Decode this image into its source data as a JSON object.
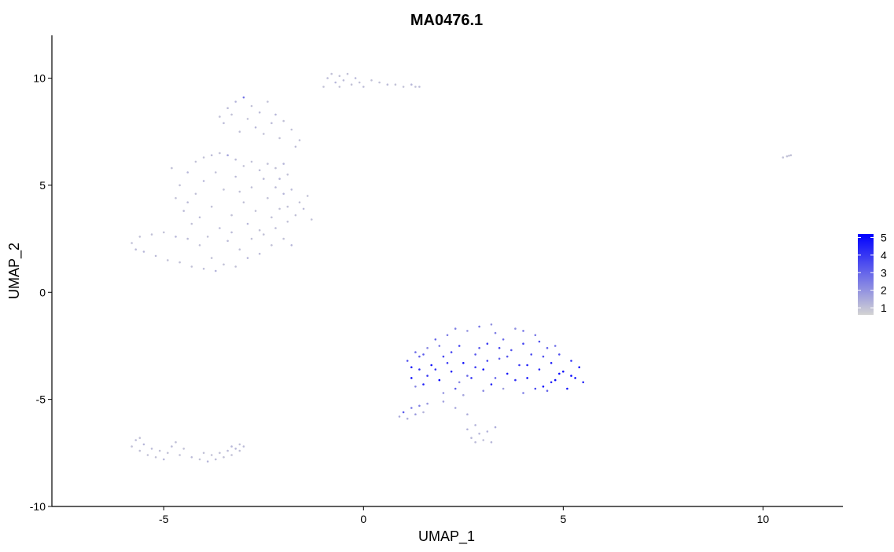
{
  "chart_data": {
    "type": "scatter",
    "title": "MA0476.1",
    "xlabel": "UMAP_1",
    "ylabel": "UMAP_2",
    "xlim": [
      -7.8,
      12
    ],
    "ylim": [
      -10,
      12
    ],
    "x_ticks": [
      -5,
      0,
      5,
      10
    ],
    "x_tick_labels": [
      "-5",
      "0",
      "5",
      "10"
    ],
    "y_ticks": [
      -10,
      -5,
      0,
      5,
      10
    ],
    "y_tick_labels": [
      "-10",
      "-5",
      "0",
      "5",
      "10"
    ],
    "grid": false,
    "legend": {
      "placement": "right",
      "type": "colorbar",
      "low_color": "#d3d3d3",
      "high_color": "#0000ff",
      "range": [
        0.6,
        5.2
      ],
      "ticks": [
        1,
        2,
        3,
        4,
        5
      ],
      "tick_labels": [
        "1",
        "2",
        "3",
        "4",
        "5"
      ]
    },
    "point_clusters": [
      {
        "name": "upper-left ring",
        "points": [
          [
            -5.8,
            2.3
          ],
          [
            -5.7,
            2.0
          ],
          [
            -5.6,
            2.6
          ],
          [
            -5.5,
            1.9
          ],
          [
            -5.3,
            2.7
          ],
          [
            -5.2,
            1.7
          ],
          [
            -5.0,
            2.8
          ],
          [
            -4.9,
            1.5
          ],
          [
            -4.7,
            2.6
          ],
          [
            -4.6,
            1.4
          ],
          [
            -4.4,
            2.5
          ],
          [
            -4.3,
            1.2
          ],
          [
            -4.1,
            2.2
          ],
          [
            -4.0,
            1.1
          ],
          [
            -3.8,
            1.6
          ],
          [
            -3.7,
            1.0
          ],
          [
            -3.5,
            1.3
          ],
          [
            -3.4,
            2.4
          ],
          [
            -3.2,
            1.2
          ],
          [
            -3.1,
            2.0
          ],
          [
            -2.9,
            1.6
          ],
          [
            -2.8,
            2.5
          ],
          [
            -2.6,
            1.8
          ],
          [
            -2.5,
            2.7
          ],
          [
            -2.3,
            2.2
          ],
          [
            -2.2,
            3.0
          ],
          [
            -2.0,
            2.5
          ],
          [
            -1.9,
            3.3
          ],
          [
            -1.8,
            2.2
          ],
          [
            -1.7,
            3.6
          ],
          [
            -1.6,
            4.2
          ],
          [
            -1.5,
            3.9
          ],
          [
            -1.4,
            4.5
          ],
          [
            -1.3,
            3.4
          ],
          [
            -1.8,
            4.8
          ],
          [
            -1.9,
            5.5
          ],
          [
            -2.0,
            6.0
          ],
          [
            -2.2,
            5.8
          ],
          [
            -2.4,
            6.0
          ],
          [
            -2.6,
            5.7
          ],
          [
            -2.8,
            6.1
          ],
          [
            -3.0,
            5.9
          ],
          [
            -3.2,
            6.2
          ],
          [
            -3.4,
            6.4
          ],
          [
            -3.6,
            6.5
          ],
          [
            -3.8,
            6.4
          ],
          [
            -4.0,
            6.3
          ],
          [
            -4.2,
            6.1
          ],
          [
            -4.4,
            5.6
          ],
          [
            -4.6,
            5.0
          ],
          [
            -4.7,
            4.4
          ],
          [
            -4.5,
            3.8
          ],
          [
            -4.3,
            3.2
          ],
          [
            -4.2,
            4.6
          ],
          [
            -4.0,
            5.2
          ],
          [
            -3.8,
            4.0
          ],
          [
            -3.6,
            3.0
          ],
          [
            -3.5,
            4.8
          ],
          [
            -3.3,
            3.6
          ],
          [
            -3.2,
            5.4
          ],
          [
            -3.0,
            4.2
          ],
          [
            -2.9,
            3.2
          ],
          [
            -2.8,
            4.9
          ],
          [
            -2.7,
            3.8
          ],
          [
            -2.5,
            5.3
          ],
          [
            -2.4,
            4.4
          ],
          [
            -2.3,
            3.5
          ],
          [
            -2.2,
            4.9
          ],
          [
            -2.1,
            3.9
          ],
          [
            -2.0,
            4.6
          ],
          [
            -4.8,
            5.8
          ],
          [
            -4.1,
            3.5
          ],
          [
            -3.9,
            2.6
          ],
          [
            -3.7,
            5.6
          ],
          [
            -3.3,
            2.8
          ],
          [
            -2.6,
            2.9
          ],
          [
            -1.9,
            4.0
          ],
          [
            -2.1,
            5.3
          ],
          [
            -3.1,
            4.7
          ],
          [
            -4.4,
            4.2
          ],
          [
            -3.6,
            8.2
          ],
          [
            -3.4,
            8.6
          ],
          [
            -3.2,
            8.9
          ],
          [
            -3.0,
            9.1
          ],
          [
            -2.8,
            8.7
          ],
          [
            -2.6,
            8.4
          ],
          [
            -2.4,
            8.9
          ],
          [
            -2.2,
            8.3
          ],
          [
            -2.0,
            8.0
          ],
          [
            -1.8,
            7.6
          ],
          [
            -3.5,
            7.9
          ],
          [
            -3.3,
            8.3
          ],
          [
            -2.9,
            8.1
          ],
          [
            -2.7,
            7.7
          ],
          [
            -2.5,
            7.4
          ],
          [
            -2.3,
            7.9
          ],
          [
            -2.1,
            7.2
          ],
          [
            -3.1,
            7.5
          ],
          [
            -1.7,
            6.8
          ],
          [
            -1.6,
            7.1
          ]
        ]
      },
      {
        "name": "top strip",
        "points": [
          [
            -1.0,
            9.6
          ],
          [
            -0.9,
            10.0
          ],
          [
            -0.8,
            10.2
          ],
          [
            -0.7,
            9.8
          ],
          [
            -0.6,
            10.1
          ],
          [
            -0.5,
            9.9
          ],
          [
            -0.4,
            10.2
          ],
          [
            -0.3,
            9.7
          ],
          [
            -0.2,
            10.0
          ],
          [
            -0.1,
            9.8
          ],
          [
            0.0,
            9.6
          ],
          [
            0.2,
            9.9
          ],
          [
            0.4,
            9.8
          ],
          [
            0.6,
            9.7
          ],
          [
            0.8,
            9.7
          ],
          [
            1.0,
            9.6
          ],
          [
            1.2,
            9.7
          ],
          [
            1.3,
            9.6
          ],
          [
            1.4,
            9.6
          ],
          [
            -0.6,
            9.6
          ]
        ]
      },
      {
        "name": "bottom-left strip",
        "points": [
          [
            -5.8,
            -7.2
          ],
          [
            -5.7,
            -6.9
          ],
          [
            -5.6,
            -7.4
          ],
          [
            -5.5,
            -7.1
          ],
          [
            -5.4,
            -7.6
          ],
          [
            -5.3,
            -7.3
          ],
          [
            -5.2,
            -7.7
          ],
          [
            -5.1,
            -7.4
          ],
          [
            -5.0,
            -7.8
          ],
          [
            -4.9,
            -7.5
          ],
          [
            -4.8,
            -7.2
          ],
          [
            -4.6,
            -7.6
          ],
          [
            -4.5,
            -7.3
          ],
          [
            -4.3,
            -7.7
          ],
          [
            -4.1,
            -7.8
          ],
          [
            -4.0,
            -7.5
          ],
          [
            -3.9,
            -7.9
          ],
          [
            -3.8,
            -7.6
          ],
          [
            -3.7,
            -7.8
          ],
          [
            -3.6,
            -7.5
          ],
          [
            -3.5,
            -7.7
          ],
          [
            -3.4,
            -7.4
          ],
          [
            -3.3,
            -7.6
          ],
          [
            -3.2,
            -7.3
          ],
          [
            -3.1,
            -7.4
          ],
          [
            -3.0,
            -7.2
          ],
          [
            -5.6,
            -6.8
          ],
          [
            -4.7,
            -7.0
          ],
          [
            -3.3,
            -7.2
          ],
          [
            -3.1,
            -7.1
          ]
        ]
      },
      {
        "name": "far-right outlier",
        "points": [
          [
            10.5,
            6.3
          ],
          [
            10.6,
            6.35
          ],
          [
            10.7,
            6.4
          ],
          [
            10.65,
            6.38
          ]
        ]
      },
      {
        "name": "main expressing cluster",
        "points": [
          [
            1.1,
            -3.2
          ],
          [
            1.2,
            -4.0
          ],
          [
            1.3,
            -2.8
          ],
          [
            1.4,
            -3.6
          ],
          [
            1.5,
            -4.3
          ],
          [
            1.6,
            -2.6
          ],
          [
            1.7,
            -3.4
          ],
          [
            1.8,
            -2.2
          ],
          [
            1.9,
            -4.1
          ],
          [
            2.0,
            -3.0
          ],
          [
            2.1,
            -2.0
          ],
          [
            2.2,
            -3.7
          ],
          [
            2.3,
            -4.5
          ],
          [
            2.4,
            -2.5
          ],
          [
            2.5,
            -3.3
          ],
          [
            2.6,
            -1.8
          ],
          [
            2.7,
            -4.0
          ],
          [
            2.8,
            -2.9
          ],
          [
            2.9,
            -1.6
          ],
          [
            3.0,
            -3.6
          ],
          [
            3.1,
            -2.4
          ],
          [
            3.2,
            -4.3
          ],
          [
            3.3,
            -1.9
          ],
          [
            3.4,
            -3.1
          ],
          [
            3.5,
            -2.2
          ],
          [
            3.6,
            -3.8
          ],
          [
            3.7,
            -2.7
          ],
          [
            3.8,
            -1.7
          ],
          [
            3.9,
            -3.4
          ],
          [
            4.0,
            -2.4
          ],
          [
            4.1,
            -4.0
          ],
          [
            4.2,
            -2.9
          ],
          [
            4.3,
            -2.0
          ],
          [
            4.4,
            -3.6
          ],
          [
            4.5,
            -4.4
          ],
          [
            4.6,
            -2.6
          ],
          [
            4.7,
            -3.3
          ],
          [
            4.8,
            -4.1
          ],
          [
            4.9,
            -2.9
          ],
          [
            5.0,
            -3.7
          ],
          [
            5.1,
            -4.5
          ],
          [
            5.2,
            -3.2
          ],
          [
            5.3,
            -4.0
          ],
          [
            5.4,
            -3.5
          ],
          [
            5.5,
            -4.2
          ],
          [
            1.3,
            -4.4
          ],
          [
            1.6,
            -3.9
          ],
          [
            2.0,
            -4.7
          ],
          [
            2.5,
            -4.8
          ],
          [
            3.0,
            -4.6
          ],
          [
            3.5,
            -4.5
          ],
          [
            4.0,
            -4.7
          ],
          [
            4.6,
            -4.6
          ],
          [
            1.2,
            -3.5
          ],
          [
            1.5,
            -2.9
          ],
          [
            1.8,
            -3.6
          ],
          [
            2.2,
            -2.8
          ],
          [
            2.6,
            -3.9
          ],
          [
            3.1,
            -3.2
          ],
          [
            3.6,
            -3.0
          ],
          [
            4.1,
            -3.4
          ],
          [
            4.5,
            -3.0
          ],
          [
            4.9,
            -3.8
          ],
          [
            5.2,
            -3.9
          ],
          [
            2.4,
            -4.2
          ],
          [
            2.8,
            -3.5
          ],
          [
            3.3,
            -4.0
          ],
          [
            3.8,
            -4.1
          ],
          [
            4.3,
            -4.5
          ],
          [
            1.9,
            -2.5
          ],
          [
            1.4,
            -3.0
          ],
          [
            2.3,
            -1.7
          ],
          [
            3.2,
            -1.5
          ],
          [
            4.0,
            -1.8
          ],
          [
            4.4,
            -2.3
          ],
          [
            4.8,
            -2.5
          ],
          [
            2.9,
            -2.6
          ],
          [
            3.4,
            -2.6
          ],
          [
            2.1,
            -3.3
          ],
          [
            4.7,
            -4.2
          ],
          [
            1.0,
            -5.6
          ],
          [
            1.1,
            -5.9
          ],
          [
            1.2,
            -5.4
          ],
          [
            1.3,
            -5.7
          ],
          [
            1.4,
            -5.3
          ],
          [
            0.9,
            -5.8
          ],
          [
            1.5,
            -5.6
          ],
          [
            1.6,
            -5.2
          ],
          [
            2.0,
            -5.1
          ],
          [
            2.3,
            -5.4
          ],
          [
            2.6,
            -5.7
          ],
          [
            2.8,
            -6.2
          ],
          [
            2.9,
            -6.6
          ],
          [
            3.0,
            -6.9
          ],
          [
            2.7,
            -6.8
          ],
          [
            3.1,
            -6.5
          ],
          [
            2.8,
            -7.0
          ],
          [
            3.2,
            -7.0
          ],
          [
            3.3,
            -6.3
          ],
          [
            2.6,
            -6.4
          ]
        ]
      }
    ],
    "point_values": [
      [
        1.0,
        1.1,
        1.0,
        1.2,
        1.0,
        1.1,
        1.0,
        1.0,
        1.2,
        1.0,
        1.1,
        1.0,
        1.0,
        1.1,
        1.0,
        1.3,
        1.0,
        1.1,
        1.0,
        1.0,
        1.2,
        1.0,
        1.1,
        1.0,
        1.0,
        1.1,
        1.0,
        1.0,
        1.2,
        1.0,
        1.0,
        1.1,
        1.0,
        1.0,
        1.1,
        1.0,
        1.2,
        1.0,
        1.0,
        1.1,
        1.0,
        1.0,
        1.1,
        1.6,
        1.0,
        1.1,
        1.0,
        1.0,
        1.2,
        1.0,
        1.0,
        1.1,
        1.0,
        1.0,
        1.2,
        1.0,
        1.1,
        1.0,
        1.0,
        1.1,
        1.0,
        1.2,
        1.0,
        1.0,
        1.1,
        1.0,
        1.0,
        1.1,
        1.0,
        1.2,
        1.0,
        1.1,
        1.0,
        1.0,
        1.1,
        1.0,
        1.0,
        1.2,
        1.0,
        1.1,
        1.0,
        1.1,
        1.3,
        2.6,
        1.0,
        1.1,
        1.0,
        1.2,
        1.0,
        1.0,
        1.1,
        1.0,
        1.0,
        1.2,
        1.0,
        1.1,
        1.0,
        1.0,
        1.1,
        1.0
      ],
      [
        1.0,
        1.1,
        1.0,
        1.2,
        1.0,
        1.1,
        1.0,
        1.0,
        1.2,
        1.0,
        1.1,
        1.0,
        1.0,
        1.1,
        1.0,
        1.0,
        1.2,
        1.0,
        1.1,
        1.0
      ],
      [
        1.0,
        1.1,
        1.0,
        1.2,
        1.0,
        1.1,
        1.0,
        1.0,
        1.2,
        1.0,
        1.1,
        1.0,
        1.0,
        1.1,
        1.0,
        1.0,
        1.2,
        1.0,
        1.1,
        1.0,
        1.0,
        1.1,
        1.0,
        1.2,
        1.0,
        1.1,
        1.0,
        1.0,
        1.2,
        1.0
      ],
      [
        1.0,
        1.0,
        1.0,
        1.0
      ],
      [
        3.5,
        5.0,
        2.8,
        4.2,
        4.6,
        2.2,
        4.8,
        3.0,
        5.0,
        3.6,
        2.5,
        4.4,
        3.2,
        3.8,
        4.9,
        2.0,
        4.1,
        3.3,
        2.7,
        5.0,
        3.9,
        4.5,
        2.4,
        3.1,
        2.9,
        4.7,
        3.4,
        2.1,
        4.0,
        3.7,
        5.0,
        3.6,
        2.6,
        4.3,
        5.0,
        3.0,
        4.6,
        5.0,
        3.5,
        4.9,
        4.8,
        4.2,
        5.0,
        4.7,
        4.4,
        2.3,
        4.0,
        2.0,
        1.6,
        2.2,
        1.8,
        2.5,
        3.0,
        4.5,
        3.2,
        4.1,
        3.6,
        2.9,
        3.8,
        3.3,
        4.6,
        3.4,
        5.0,
        5.0,
        2.2,
        3.9,
        3.1,
        4.2,
        3.7,
        2.6,
        3.0,
        2.4,
        2.0,
        2.7,
        3.5,
        2.8,
        3.2,
        3.6,
        4.0,
        4.4,
        3.2,
        1.4,
        2.6,
        1.8,
        2.4,
        1.5,
        1.3,
        1.9,
        1.7,
        1.6,
        1.4,
        1.3,
        1.2,
        1.1,
        1.2,
        1.3,
        1.1,
        1.2,
        1.4,
        1.3
      ]
    ]
  }
}
